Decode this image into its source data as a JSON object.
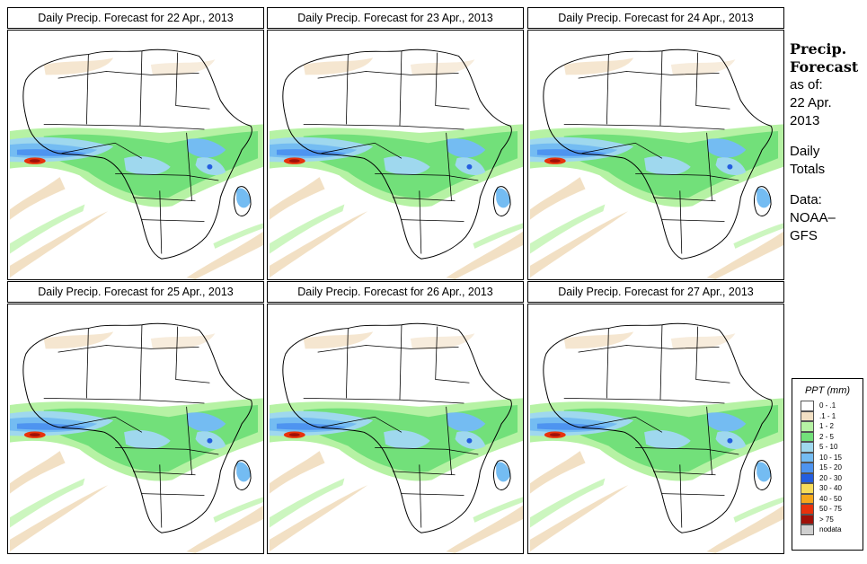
{
  "panels": [
    {
      "title": "Daily Precip. Forecast for  22 Apr., 2013"
    },
    {
      "title": "Daily Precip. Forecast for  23 Apr., 2013"
    },
    {
      "title": "Daily Precip. Forecast for  24 Apr., 2013"
    },
    {
      "title": "Daily Precip. Forecast for  25 Apr., 2013"
    },
    {
      "title": "Daily Precip. Forecast for  26 Apr., 2013"
    },
    {
      "title": "Daily Precip. Forecast for  27 Apr., 2013"
    }
  ],
  "side_info": {
    "heading_line1": "Precip.",
    "heading_line2": "Forecast",
    "asof": "as of:",
    "date_line1": "22 Apr.",
    "date_line2": "2013",
    "totals_line1": "Daily",
    "totals_line2": "Totals",
    "data_line1": "Data:",
    "data_line2": "NOAA–",
    "data_line3": "GFS"
  },
  "legend": {
    "title": "PPT (mm)",
    "items": [
      {
        "label": "0 - .1",
        "color": "#ffffff"
      },
      {
        "label": ".1 - 1",
        "color": "#f2e0c4"
      },
      {
        "label": "1 - 2",
        "color": "#b6f2a4"
      },
      {
        "label": "2 - 5",
        "color": "#72e07a"
      },
      {
        "label": "5 - 10",
        "color": "#9fd8ee"
      },
      {
        "label": "10 - 15",
        "color": "#74bcf2"
      },
      {
        "label": "15 - 20",
        "color": "#4e94f0"
      },
      {
        "label": "20 - 30",
        "color": "#245ee0"
      },
      {
        "label": "30 - 40",
        "color": "#f6dc5a"
      },
      {
        "label": "40 - 50",
        "color": "#f5a71c"
      },
      {
        "label": "50 - 75",
        "color": "#e8320c"
      },
      {
        "label": "> 75",
        "color": "#a01008"
      },
      {
        "label": "nodata",
        "color": "#cfcfcf"
      }
    ]
  }
}
